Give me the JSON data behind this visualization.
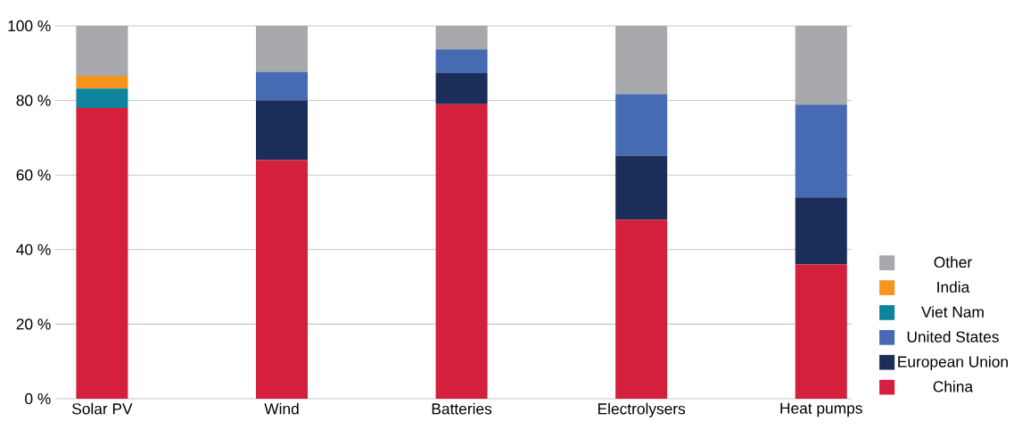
{
  "chart_data": {
    "type": "bar",
    "stacked": true,
    "categories": [
      "Solar PV",
      "Wind",
      "Batteries",
      "Electrolysers",
      "Heat pumps"
    ],
    "series": [
      {
        "name": "China",
        "color": "#d41f3d",
        "values": [
          78,
          64,
          79,
          48,
          36
        ]
      },
      {
        "name": "European Union",
        "color": "#1b2e5a",
        "values": [
          null,
          16,
          8.3,
          17.2,
          18
        ]
      },
      {
        "name": "United States",
        "color": "#466bb3",
        "values": [
          null,
          7.7,
          6.4,
          16.5,
          24.9
        ]
      },
      {
        "name": "Viet Nam",
        "color": "#0e849e",
        "values": [
          5.2,
          null,
          null,
          null,
          null
        ]
      },
      {
        "name": "India",
        "color": "#f7941d",
        "values": [
          3.4,
          null,
          null,
          null,
          null
        ]
      },
      {
        "name": "Other",
        "color": "#a8a9ad",
        "values": [
          13.4,
          12.3,
          6.3,
          18.3,
          21.1
        ]
      }
    ],
    "ylim": [
      0,
      100
    ],
    "yticks": [
      {
        "value": 0,
        "label": "0 %"
      },
      {
        "value": 20,
        "label": "20 %"
      },
      {
        "value": 40,
        "label": "40 %"
      },
      {
        "value": 60,
        "label": "60 %"
      },
      {
        "value": 80,
        "label": "80 %"
      },
      {
        "value": 100,
        "label": "100 %"
      }
    ],
    "grid": "y",
    "legend": "right"
  }
}
